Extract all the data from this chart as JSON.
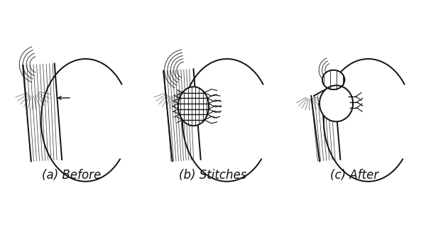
{
  "labels": [
    "(a) Before",
    "(b) Stitches",
    "(c) After"
  ],
  "label_fontsize": 12,
  "background_color": "#ffffff",
  "line_color": "#111111",
  "figsize": [
    6.0,
    3.27
  ],
  "dpi": 100
}
